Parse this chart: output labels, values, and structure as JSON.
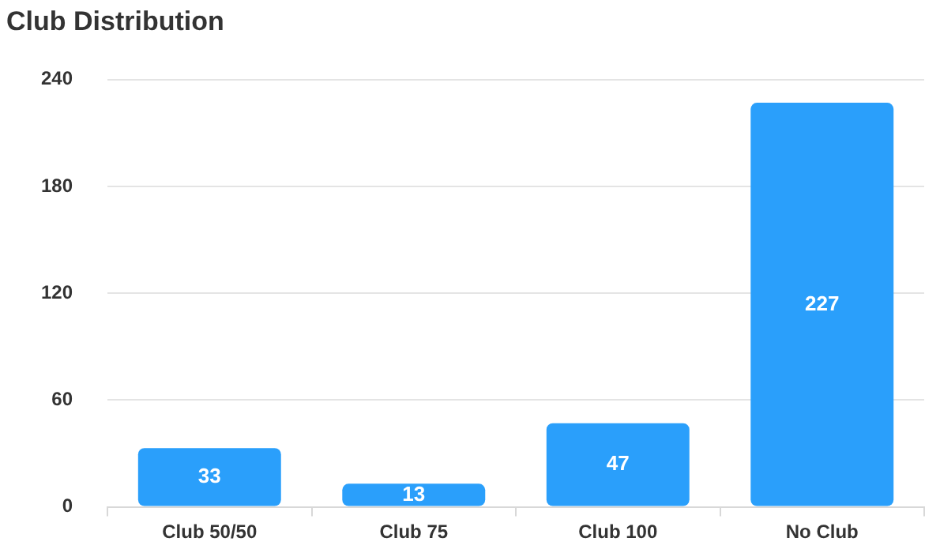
{
  "chart_data": {
    "type": "bar",
    "title": "Club Distribution",
    "categories": [
      "Club 50/50",
      "Club 75",
      "Club 100",
      "No Club"
    ],
    "values": [
      33,
      13,
      47,
      227
    ],
    "color": "#2a9ffb",
    "ylim": [
      0,
      240
    ],
    "yticks": [
      0,
      60,
      120,
      180,
      240
    ],
    "grid": "y",
    "legend": false,
    "data_labels": true
  }
}
